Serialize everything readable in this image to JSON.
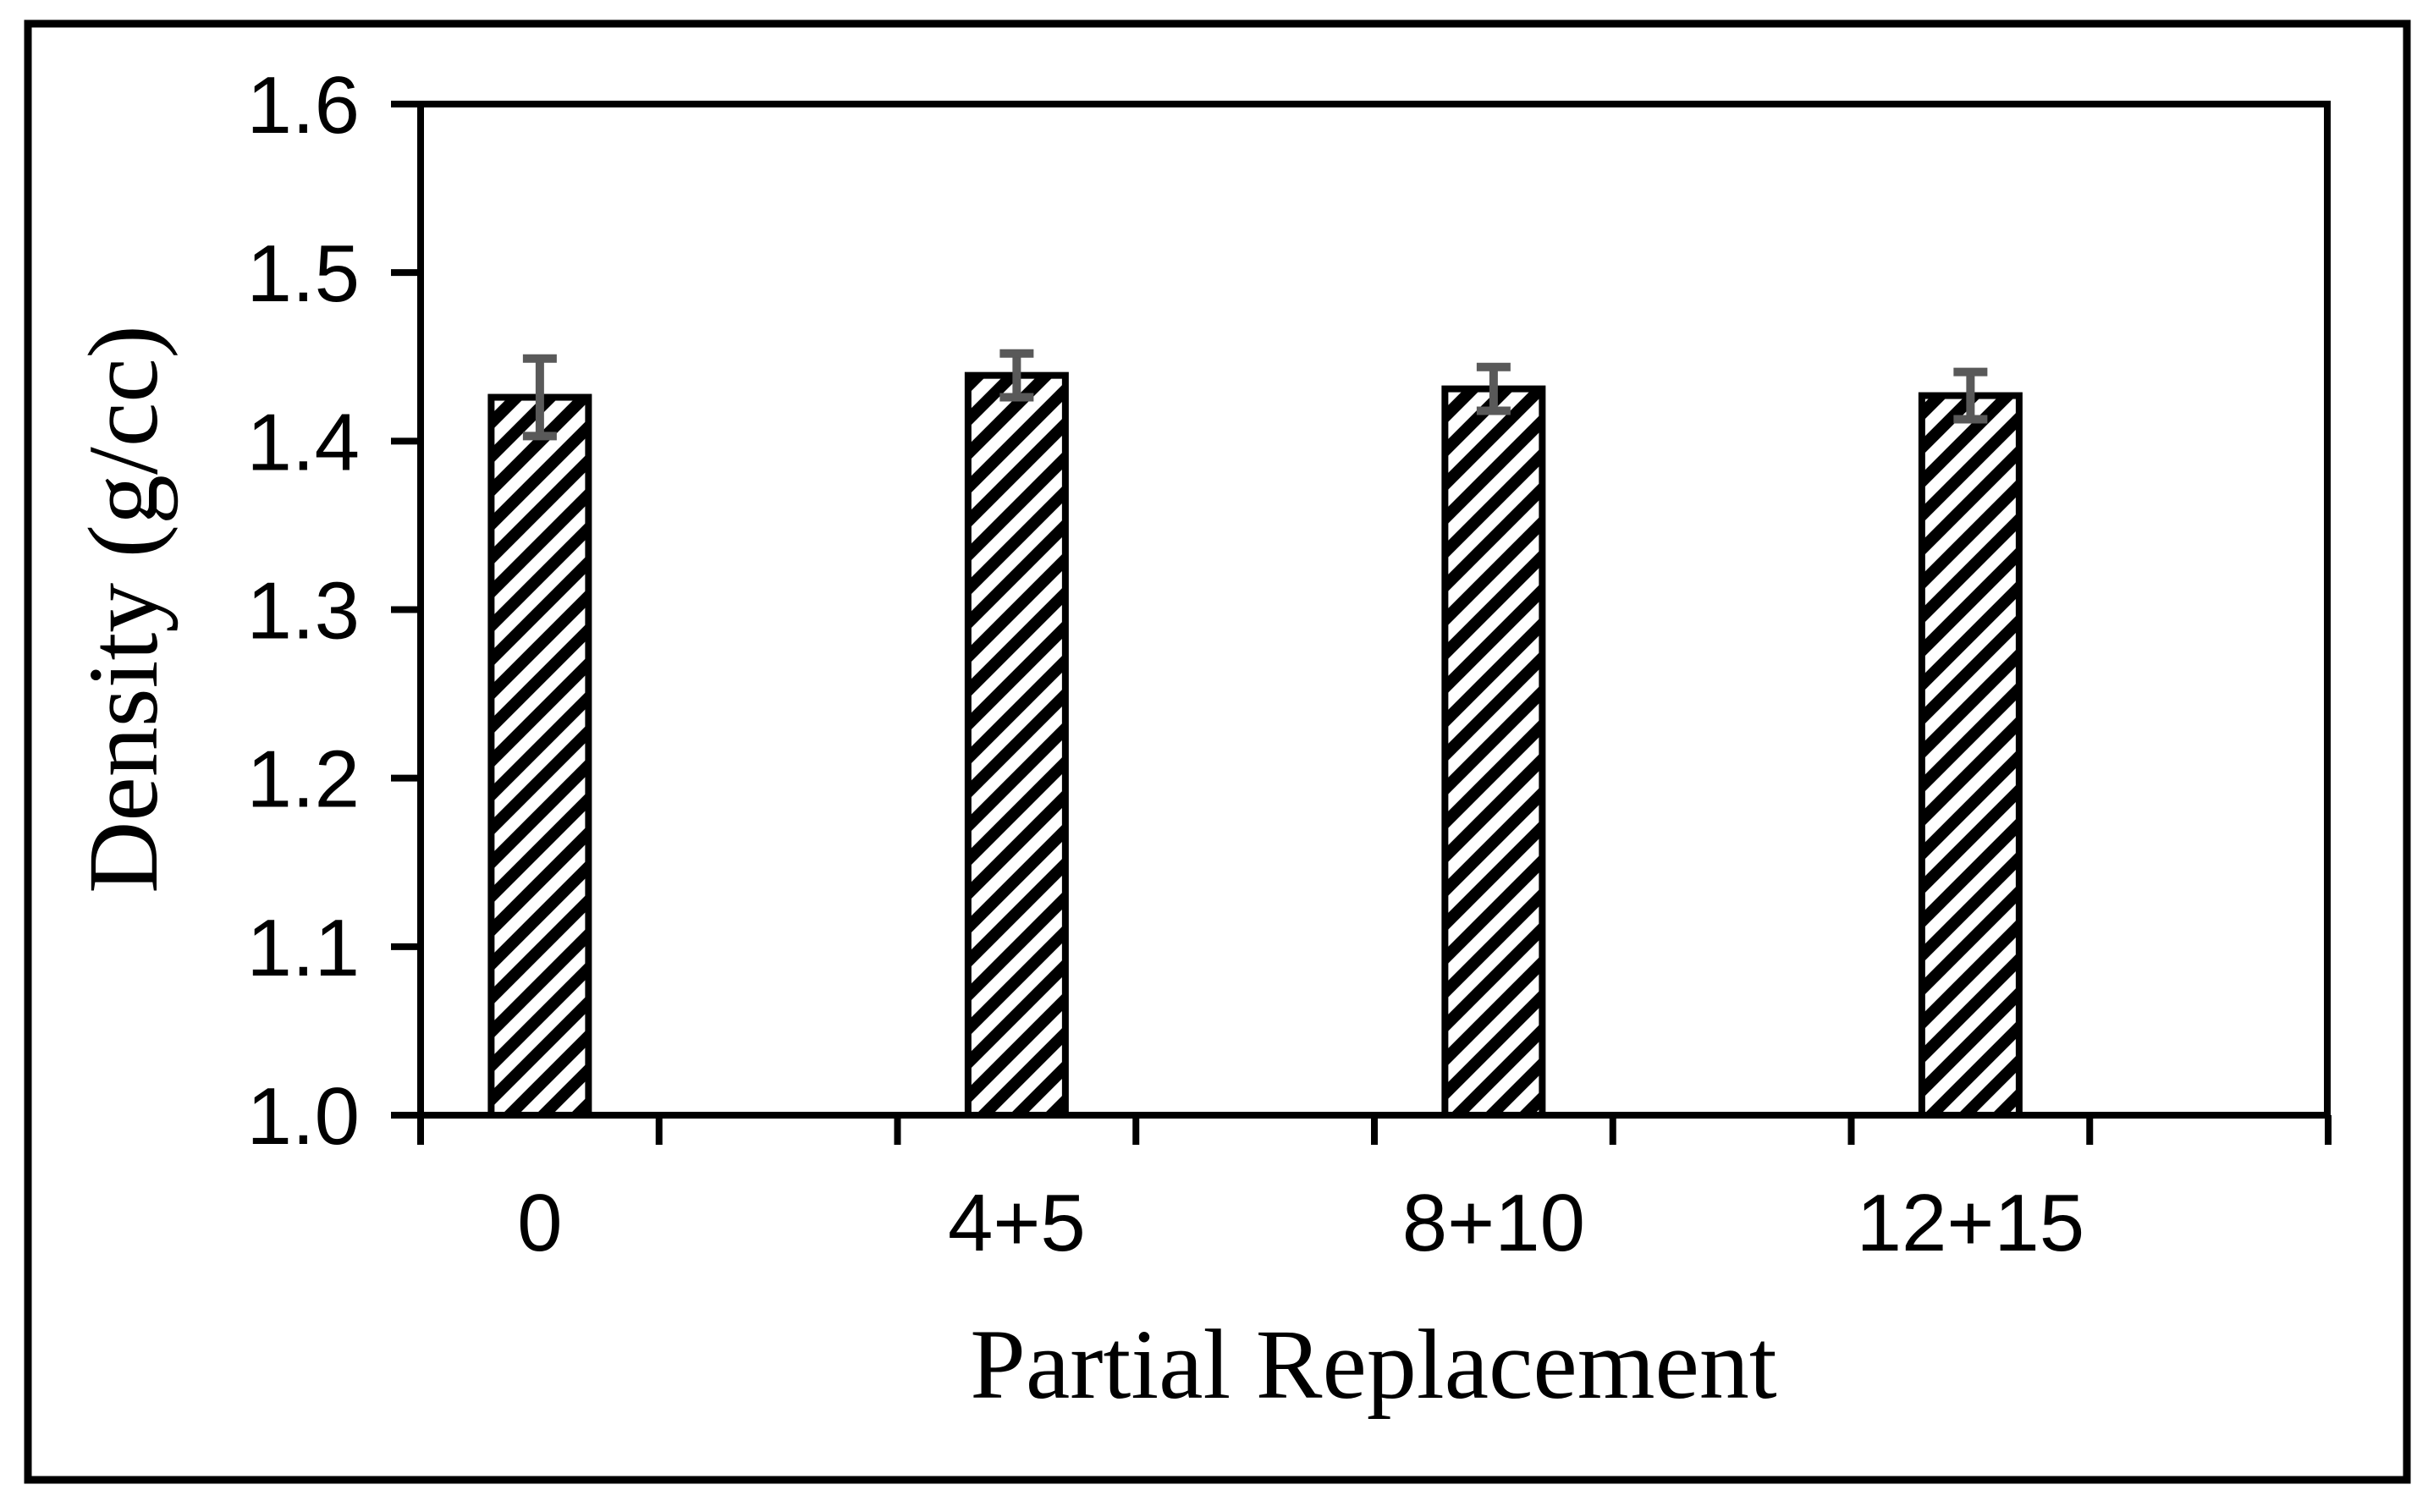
{
  "chart_data": {
    "type": "bar",
    "title": "",
    "xlabel": "Partial Replacement",
    "ylabel": "Density (g/cc)",
    "categories": [
      "0",
      "4+5",
      "8+10",
      "12+15"
    ],
    "values": [
      1.426,
      1.439,
      1.431,
      1.427
    ],
    "error_bars": [
      0.023,
      0.013,
      0.013,
      0.014
    ],
    "ylim": [
      1.0,
      1.6
    ],
    "ytick_step": 0.1,
    "ytick_labels": [
      "1.0",
      "1.1",
      "1.2",
      "1.3",
      "1.4",
      "1.5",
      "1.6"
    ],
    "grid": false,
    "legend": null,
    "bar_style": {
      "fill": "#ffffff",
      "hatch": "diagonal-forward",
      "edge_color": "#000000"
    },
    "error_bar_color": "#595959",
    "axis_color": "#000000",
    "figure_border_color": "#000000"
  }
}
